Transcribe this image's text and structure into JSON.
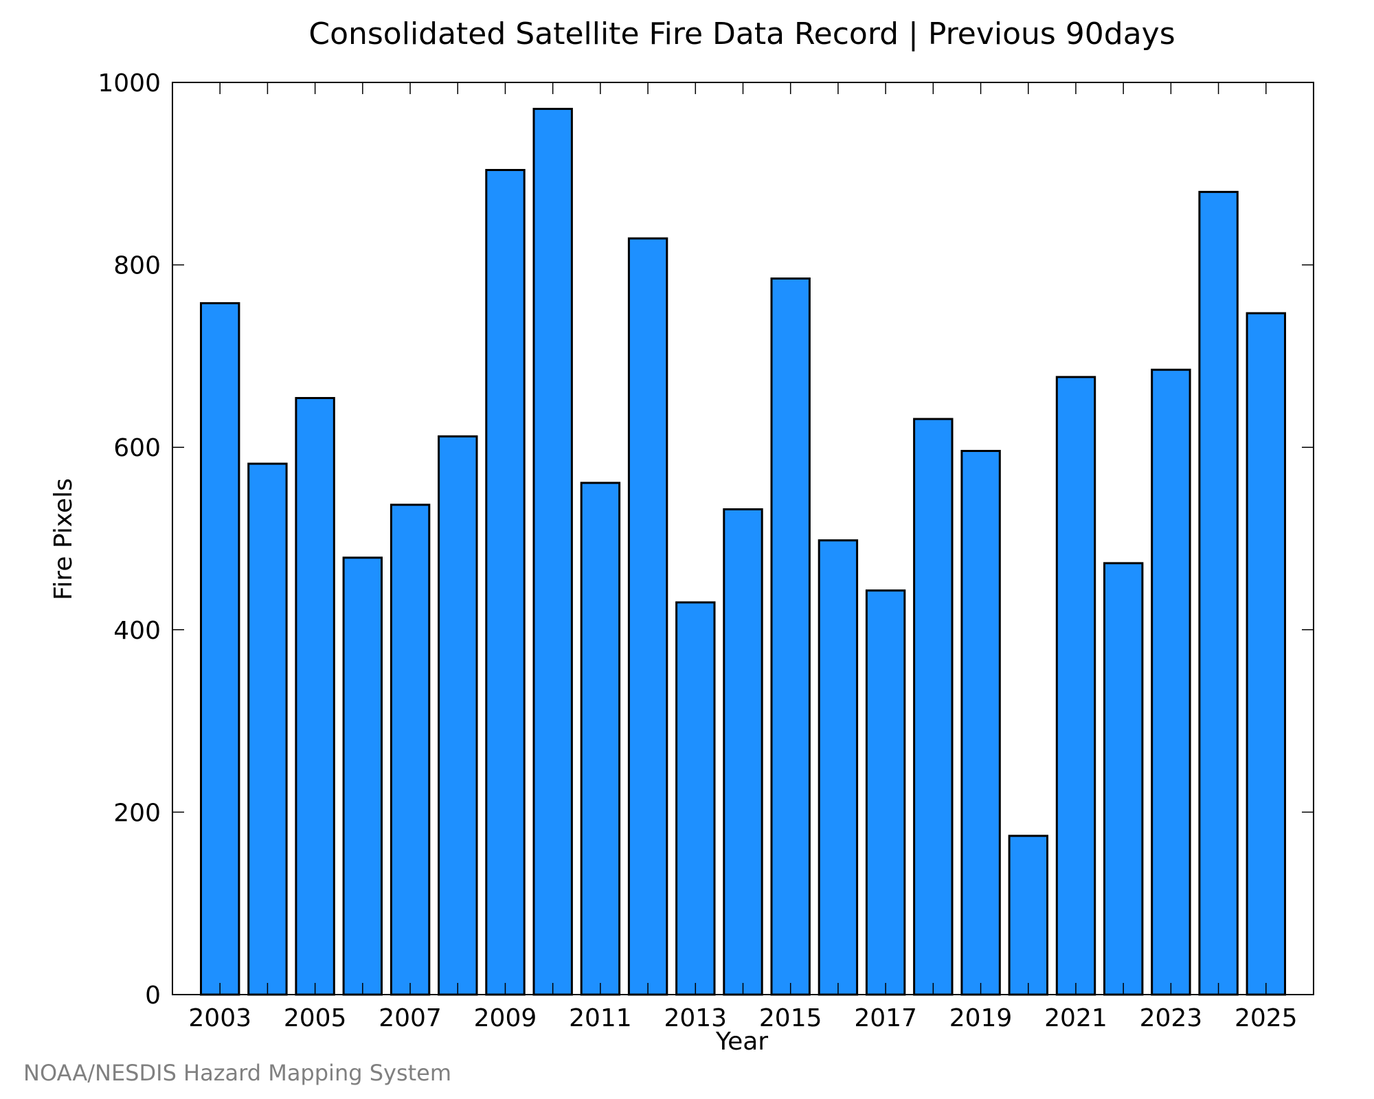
{
  "chart_data": {
    "type": "bar",
    "title": "Consolidated Satellite Fire Data Record | Previous 90days",
    "xlabel": "Year",
    "ylabel": "Fire Pixels",
    "categories": [
      "2003",
      "2004",
      "2005",
      "2006",
      "2007",
      "2008",
      "2009",
      "2010",
      "2011",
      "2012",
      "2013",
      "2014",
      "2015",
      "2016",
      "2017",
      "2018",
      "2019",
      "2020",
      "2021",
      "2022",
      "2023",
      "2024",
      "2025"
    ],
    "values": [
      758,
      582,
      654,
      479,
      537,
      612,
      904,
      971,
      561,
      829,
      430,
      532,
      785,
      498,
      443,
      631,
      596,
      174,
      677,
      473,
      685,
      880,
      747
    ],
    "ylim": [
      0,
      1000
    ],
    "xlim": [
      2002,
      2026
    ],
    "yticks": [
      "0",
      "200",
      "400",
      "600",
      "800",
      "1000"
    ],
    "xticks": [
      "2003",
      "2005",
      "2007",
      "2009",
      "2011",
      "2013",
      "2015",
      "2017",
      "2019",
      "2021",
      "2023",
      "2025"
    ],
    "bar_color": "#1e90ff",
    "edge_color": "#000000",
    "grid": false,
    "legend": false
  },
  "footer": {
    "credit": "NOAA/NESDIS Hazard Mapping System"
  }
}
